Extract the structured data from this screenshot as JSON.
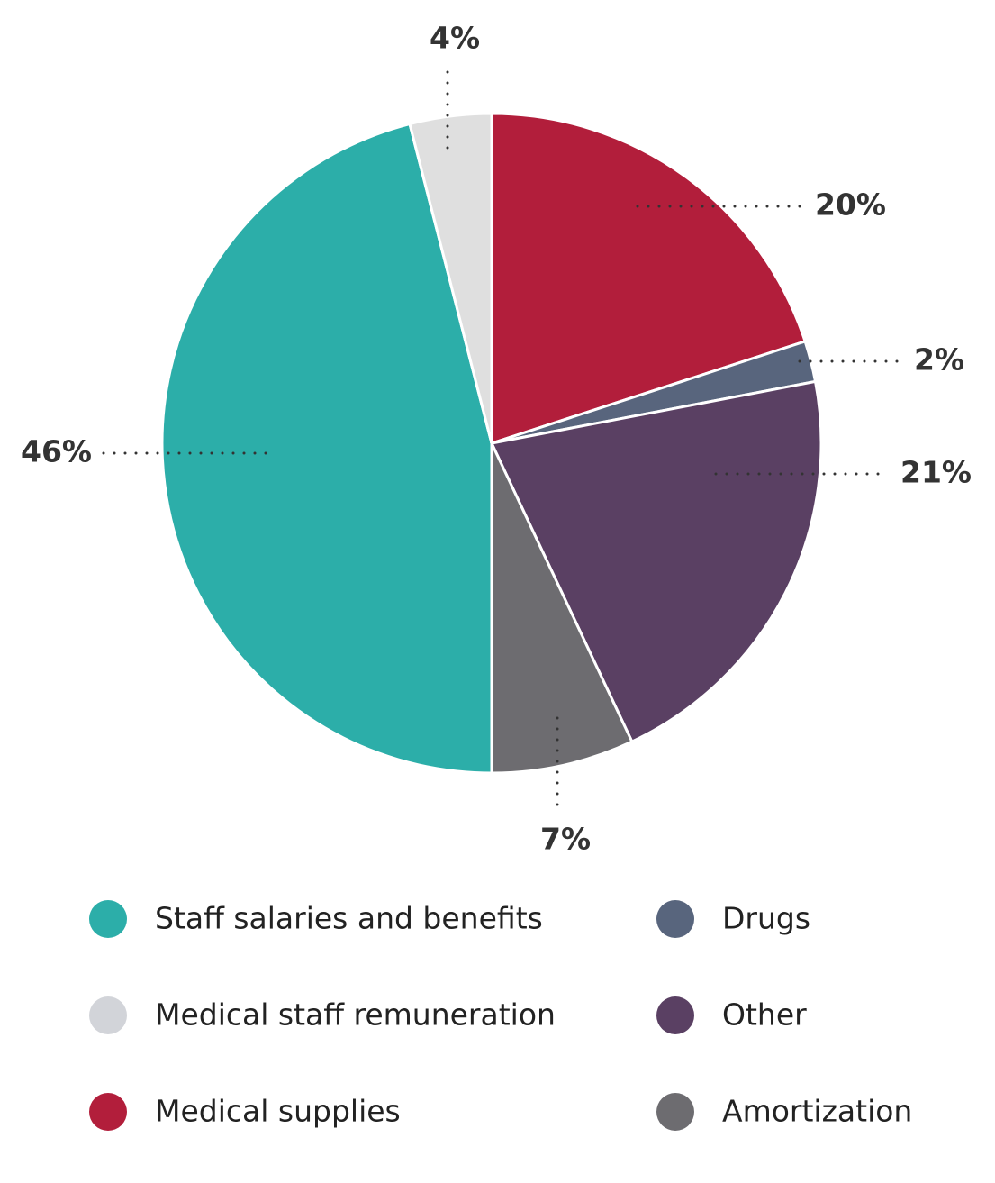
{
  "chart_data": {
    "type": "pie",
    "categories": [
      "Staff salaries and benefits",
      "Medical staff remuneration",
      "Medical supplies",
      "Drugs",
      "Other",
      "Amortization"
    ],
    "values": [
      46,
      4,
      20,
      2,
      21,
      7
    ],
    "value_labels": [
      "46%",
      "4%",
      "20%",
      "2%",
      "21%",
      "7%"
    ],
    "colors": [
      "#2caea9",
      "#dfdfdf",
      "#b21e3b",
      "#58657d",
      "#5a4063",
      "#6d6c70"
    ],
    "legend_colors": [
      "#2caea9",
      "#d2d4d9",
      "#b21e3b",
      "#58657d",
      "#5a4063",
      "#6d6c70"
    ]
  }
}
